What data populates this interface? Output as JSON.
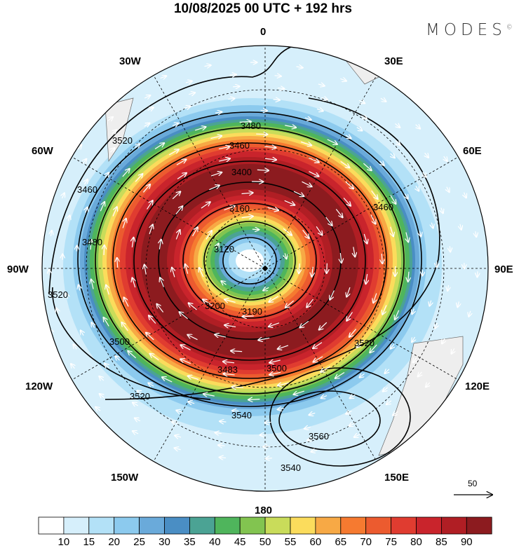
{
  "title": "10/08/2025  00 UTC  + 192 hrs",
  "logo": "MODES",
  "logo_mark": "©",
  "longitude_labels": {
    "n": "0",
    "ne30": "30E",
    "ne60": "60E",
    "e": "90E",
    "se120": "120E",
    "se150": "150E",
    "s": "180",
    "sw150": "150W",
    "sw120": "120W",
    "w": "90W",
    "nw60": "60W",
    "nw30": "30W"
  },
  "contour_labels": [
    "3480",
    "3520",
    "3460",
    "3400",
    "3160",
    "3120",
    "3200",
    "3190",
    "3500",
    "3483",
    "3540",
    "3560",
    "3520",
    "3460",
    "3500",
    "3520",
    "3540",
    "3480",
    "3460",
    "3520"
  ],
  "vector_reference": {
    "label": "50"
  },
  "colorbar": {
    "colors": [
      "#ffffff",
      "#d6effb",
      "#b3e1f7",
      "#8ccaee",
      "#6aaada",
      "#4a8ec4",
      "#4ba394",
      "#4fb55c",
      "#82c450",
      "#c9dc5a",
      "#fbdc5c",
      "#f7a945",
      "#f67a30",
      "#ec5b2f",
      "#e03c30",
      "#c9242c",
      "#b01e24",
      "#8c1b1f"
    ],
    "labels": [
      "10",
      "15",
      "20",
      "25",
      "30",
      "35",
      "40",
      "45",
      "50",
      "55",
      "60",
      "65",
      "70",
      "75",
      "80",
      "85",
      "90"
    ]
  }
}
